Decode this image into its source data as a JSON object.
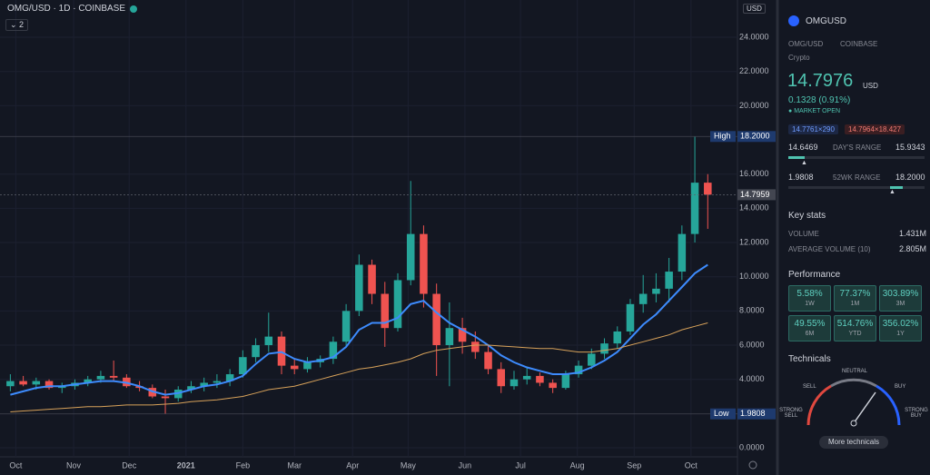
{
  "header": {
    "title": "OMG/USD · 1D · COINBASE",
    "indicators_count": "2",
    "currency": "USD"
  },
  "chart_data": {
    "type": "candlestick",
    "up_color": "#26a69a",
    "down_color": "#ef5350",
    "candles": {
      "open": [
        3.6,
        3.9,
        3.7,
        3.9,
        3.5,
        3.6,
        3.8,
        4.0,
        4.2,
        4.1,
        3.6,
        3.5,
        3.0,
        2.9,
        3.4,
        3.6,
        3.8,
        3.9,
        4.3,
        5.3,
        6.0,
        6.5,
        4.8,
        4.6,
        5.0,
        5.2,
        6.2,
        8.0,
        10.7,
        9.0,
        7.0,
        9.8,
        12.5,
        9.0,
        6.0,
        7.0,
        6.2,
        5.6,
        4.6,
        3.6,
        4.0,
        4.2,
        3.8,
        3.5,
        4.3,
        4.8,
        5.5,
        6.1,
        6.8,
        8.4,
        9.0,
        9.3,
        10.3,
        12.5,
        15.5
      ],
      "high": [
        4.3,
        4.2,
        4.1,
        4.0,
        3.8,
        4.0,
        4.2,
        4.5,
        5.1,
        4.3,
        3.9,
        3.7,
        3.4,
        3.6,
        3.9,
        4.1,
        4.3,
        4.6,
        5.7,
        6.4,
        7.9,
        6.8,
        5.2,
        5.3,
        5.4,
        6.5,
        8.4,
        11.3,
        11.0,
        9.7,
        10.2,
        15.6,
        13.0,
        9.6,
        8.5,
        7.6,
        6.8,
        6.0,
        5.0,
        4.5,
        4.7,
        4.4,
        4.0,
        4.5,
        5.1,
        5.8,
        6.4,
        7.1,
        8.7,
        10.1,
        10.2,
        11.1,
        13.0,
        18.2,
        16.0
      ],
      "low": [
        3.3,
        3.6,
        3.4,
        3.4,
        3.2,
        3.4,
        3.6,
        3.8,
        3.9,
        3.5,
        3.3,
        2.9,
        1.9808,
        2.7,
        3.2,
        3.3,
        3.5,
        3.6,
        4.1,
        5.0,
        5.6,
        4.3,
        4.3,
        4.4,
        4.7,
        4.9,
        5.9,
        7.7,
        8.4,
        5.9,
        6.8,
        9.5,
        8.2,
        4.2,
        3.6,
        5.5,
        5.2,
        4.3,
        3.2,
        3.4,
        3.7,
        3.6,
        3.2,
        3.4,
        4.1,
        4.6,
        5.2,
        5.8,
        6.6,
        7.9,
        8.5,
        8.5,
        9.8,
        12.0,
        12.8
      ],
      "close": [
        3.9,
        3.7,
        3.9,
        3.5,
        3.6,
        3.8,
        4.0,
        4.2,
        4.1,
        3.6,
        3.5,
        3.0,
        2.9,
        3.4,
        3.6,
        3.8,
        3.9,
        4.3,
        5.3,
        6.0,
        6.5,
        4.8,
        4.6,
        5.0,
        5.2,
        6.2,
        8.0,
        10.7,
        9.0,
        7.0,
        9.8,
        12.5,
        9.0,
        6.0,
        7.0,
        6.2,
        5.6,
        4.6,
        3.6,
        4.0,
        4.2,
        3.8,
        3.5,
        4.3,
        4.8,
        5.5,
        6.1,
        6.8,
        8.4,
        9.0,
        9.3,
        10.3,
        12.5,
        15.5,
        14.8
      ]
    },
    "moving_averages": [
      {
        "color": "#3d8bfd",
        "values": [
          3.1,
          3.3,
          3.5,
          3.6,
          3.6,
          3.7,
          3.8,
          3.9,
          3.9,
          3.8,
          3.6,
          3.3,
          3.1,
          3.2,
          3.4,
          3.6,
          3.7,
          3.9,
          4.2,
          4.9,
          5.5,
          5.6,
          5.2,
          5.0,
          5.1,
          5.3,
          5.9,
          6.9,
          7.3,
          7.3,
          7.6,
          8.4,
          8.6,
          7.9,
          7.3,
          6.9,
          6.5,
          6.0,
          5.4,
          5.0,
          4.7,
          4.5,
          4.3,
          4.3,
          4.4,
          4.7,
          5.1,
          5.6,
          6.4,
          7.2,
          7.8,
          8.6,
          9.4,
          10.2,
          10.7
        ]
      },
      {
        "color": "#d8a25a",
        "values": [
          2.1,
          2.15,
          2.2,
          2.25,
          2.3,
          2.35,
          2.4,
          2.4,
          2.45,
          2.5,
          2.5,
          2.5,
          2.55,
          2.6,
          2.7,
          2.75,
          2.8,
          2.9,
          3.0,
          3.2,
          3.4,
          3.5,
          3.6,
          3.8,
          4.0,
          4.2,
          4.4,
          4.6,
          4.7,
          4.85,
          5.0,
          5.2,
          5.5,
          5.7,
          5.8,
          5.9,
          6.0,
          6.0,
          5.95,
          5.9,
          5.85,
          5.8,
          5.8,
          5.7,
          5.6,
          5.6,
          5.7,
          5.8,
          6.0,
          6.2,
          6.4,
          6.6,
          6.9,
          7.1,
          7.3
        ]
      }
    ],
    "xlim": [
      -0.8,
      56.3
    ],
    "xticks": [
      {
        "value": 0.42,
        "label": "Oct"
      },
      {
        "value": 4.9,
        "label": "Nov"
      },
      {
        "value": 9.2,
        "label": "Dec"
      },
      {
        "value": 13.6,
        "label": "2021"
      },
      {
        "value": 18.0,
        "label": "Feb"
      },
      {
        "value": 22.0,
        "label": "Mar"
      },
      {
        "value": 26.5,
        "label": "Apr"
      },
      {
        "value": 30.8,
        "label": "May"
      },
      {
        "value": 35.2,
        "label": "Jun"
      },
      {
        "value": 39.5,
        "label": "Jul"
      },
      {
        "value": 43.9,
        "label": "Aug"
      },
      {
        "value": 48.3,
        "label": "Sep"
      },
      {
        "value": 52.7,
        "label": "Oct"
      }
    ],
    "ylim": [
      -0.53,
      26.18
    ],
    "yticks": [
      {
        "value": 0,
        "label": "0.0000"
      },
      {
        "value": 4,
        "label": "4.0000"
      },
      {
        "value": 6,
        "label": "6.0000"
      },
      {
        "value": 8,
        "label": "8.0000"
      },
      {
        "value": 10,
        "label": "10.0000"
      },
      {
        "value": 12,
        "label": "12.0000"
      },
      {
        "value": 14,
        "label": "14.0000"
      },
      {
        "value": 16,
        "label": "16.0000"
      },
      {
        "value": 20,
        "label": "20.0000"
      },
      {
        "value": 22,
        "label": "22.0000"
      },
      {
        "value": 24,
        "label": "24.0000"
      }
    ],
    "grid": true,
    "price_lines": [
      {
        "name": "High",
        "value": 18.2,
        "value_label": "18.2000"
      },
      {
        "name": "Low",
        "value": 1.9808,
        "value_label": "1.9808"
      },
      {
        "value": 14.7959,
        "value_label": "14.7959"
      }
    ]
  },
  "sidebar": {
    "symbol": "OMGUSD",
    "pair": "OMG/USD",
    "exchange": "COINBASE",
    "category": "Crypto",
    "price": "14.7976",
    "price_currency": "USD",
    "change": "0.1328 (0.91%)",
    "market_status": "MARKET OPEN",
    "bid": "14.7761×290",
    "ask": "14.7964×18.427",
    "day_range": {
      "low": "14.6469",
      "label": "DAY'S RANGE",
      "high": "15.9343"
    },
    "week52_range": {
      "low": "1.9808",
      "label": "52WK RANGE",
      "high": "18.2000"
    },
    "key_stats": {
      "title": "Key stats",
      "rows": [
        [
          "VOLUME",
          "1.431M"
        ],
        [
          "AVERAGE VOLUME (10)",
          "2.805M"
        ]
      ]
    },
    "performance": {
      "title": "Performance",
      "tiles": [
        [
          "5.58%",
          "1W"
        ],
        [
          "77.37%",
          "1M"
        ],
        [
          "303.89%",
          "3M"
        ],
        [
          "49.55%",
          "6M"
        ],
        [
          "514.76%",
          "YTD"
        ],
        [
          "356.02%",
          "1Y"
        ]
      ]
    },
    "technicals": {
      "title": "Technicals",
      "labels": {
        "sell": "SELL",
        "neutral": "NEUTRAL",
        "buy": "BUY",
        "strong_sell": "STRONG SELL",
        "strong_buy": "STRONG BUY"
      },
      "button": "More technicals"
    }
  }
}
